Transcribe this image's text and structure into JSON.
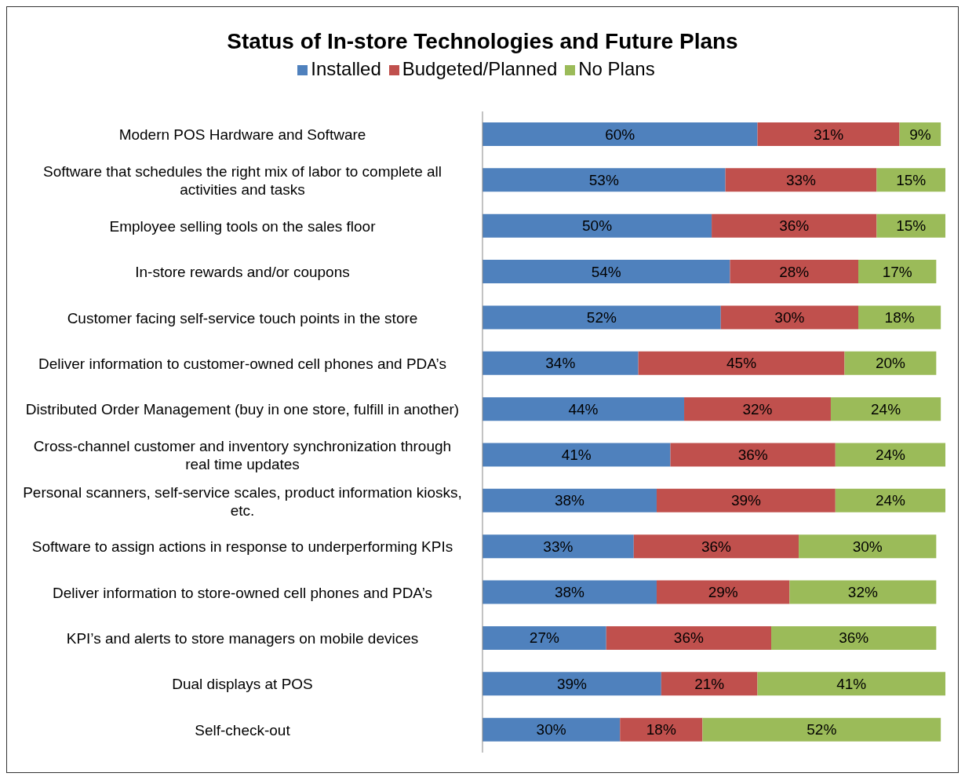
{
  "chart_data": {
    "type": "bar",
    "orientation": "horizontal",
    "stacked": true,
    "title": "Status of In-store Technologies and Future Plans",
    "legend": "top",
    "categories": [
      "Modern POS Hardware and Software",
      "Software that schedules the right mix of labor to complete all activities and tasks",
      "Employee selling tools on the sales floor",
      "In-store rewards and/or coupons",
      "Customer facing self-service touch points in the store",
      "Deliver information to customer-owned cell phones and PDA’s",
      "Distributed Order Management (buy in one store, fulfill in another)",
      "Cross-channel customer and inventory synchronization through real time updates",
      "Personal scanners, self-service scales, product information kiosks, etc.",
      "Software to assign actions in response to underperforming KPIs",
      "Deliver information to store-owned cell phones and PDA’s",
      "KPI’s and alerts to store managers on mobile devices",
      "Dual displays at POS",
      "Self-check-out"
    ],
    "series": [
      {
        "name": "Installed",
        "color": "#4f81bd",
        "values": [
          60,
          53,
          50,
          54,
          52,
          34,
          44,
          41,
          38,
          33,
          38,
          27,
          39,
          30
        ],
        "value_labels": [
          "60%",
          "53%",
          "50%",
          "54%",
          "52%",
          "34%",
          "44%",
          "41%",
          "38%",
          "33%",
          "38%",
          "27%",
          "39%",
          "30%"
        ]
      },
      {
        "name": "Budgeted/Planned",
        "color": "#c0504d",
        "values": [
          31,
          33,
          36,
          28,
          30,
          45,
          32,
          36,
          39,
          36,
          29,
          36,
          21,
          18
        ],
        "value_labels": [
          "31%",
          "33%",
          "36%",
          "28%",
          "30%",
          "45%",
          "32%",
          "36%",
          "39%",
          "36%",
          "29%",
          "36%",
          "21%",
          "18%"
        ]
      },
      {
        "name": "No Plans",
        "color": "#9bbb59",
        "values": [
          9,
          15,
          15,
          17,
          18,
          20,
          24,
          24,
          24,
          30,
          32,
          36,
          41,
          52
        ],
        "value_labels": [
          "9%",
          "15%",
          "15%",
          "17%",
          "18%",
          "20%",
          "24%",
          "24%",
          "24%",
          "30%",
          "32%",
          "36%",
          "41%",
          "52%"
        ]
      }
    ]
  }
}
